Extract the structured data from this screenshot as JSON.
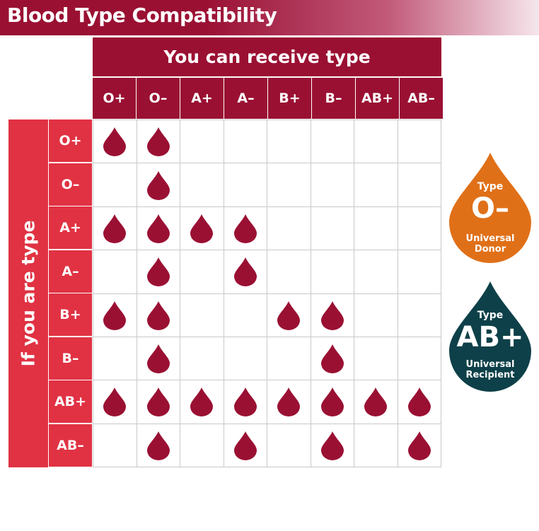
{
  "title": "Blood Type Compatibility",
  "receive_heading": "You can receive type",
  "donor_heading": "If you are type",
  "columns": [
    "O+",
    "O–",
    "A+",
    "A–",
    "B+",
    "B–",
    "AB+",
    "AB–"
  ],
  "rows": [
    {
      "type": "O+",
      "compatible": [
        true,
        true,
        false,
        false,
        false,
        false,
        false,
        false
      ]
    },
    {
      "type": "O–",
      "compatible": [
        false,
        true,
        false,
        false,
        false,
        false,
        false,
        false
      ]
    },
    {
      "type": "A+",
      "compatible": [
        true,
        true,
        true,
        true,
        false,
        false,
        false,
        false
      ]
    },
    {
      "type": "A–",
      "compatible": [
        false,
        true,
        false,
        true,
        false,
        false,
        false,
        false
      ]
    },
    {
      "type": "B+",
      "compatible": [
        true,
        true,
        false,
        false,
        true,
        true,
        false,
        false
      ]
    },
    {
      "type": "B–",
      "compatible": [
        false,
        true,
        false,
        false,
        false,
        true,
        false,
        false
      ]
    },
    {
      "type": "AB+",
      "compatible": [
        true,
        true,
        true,
        true,
        true,
        true,
        true,
        true
      ]
    },
    {
      "type": "AB–",
      "compatible": [
        false,
        true,
        false,
        true,
        false,
        true,
        false,
        true
      ]
    }
  ],
  "universal_donor": {
    "label_top": "Type",
    "type": "O–",
    "line1": "Universal",
    "line2": "Donor",
    "color": "#e07018"
  },
  "universal_recipient": {
    "label_top": "Type",
    "type": "AB+",
    "line1": "Universal",
    "line2": "Recipient",
    "color": "#0e4049"
  },
  "colors": {
    "header": "#9a1033",
    "donor_header": "#e03243",
    "drop": "#9a1033",
    "grid_line": "#c9c9c9"
  },
  "icons": {
    "compatible": "blood-drop-icon"
  }
}
